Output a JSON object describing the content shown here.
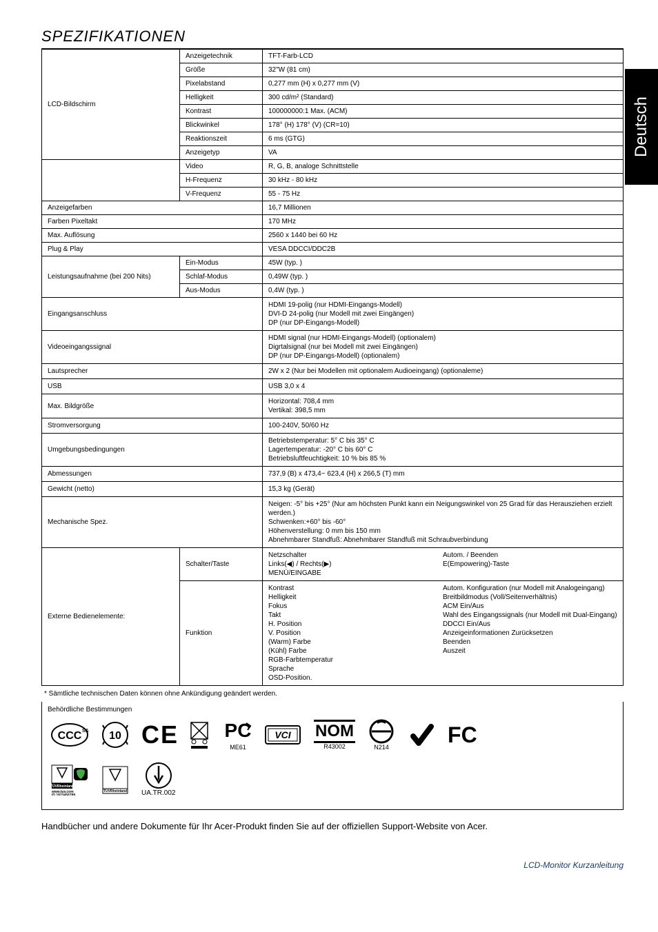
{
  "side_tab": "Deutsch",
  "title": "SPEZIFIKATIONEN",
  "rows": {
    "lcd_group_label": "LCD-Bildschirm",
    "lcd": [
      {
        "k": "Anzeigetechnik",
        "v": "TFT-Farb-LCD"
      },
      {
        "k": "Größe",
        "v": "32\"W (81 cm)"
      },
      {
        "k": "Pixelabstand",
        "v": "0,277 mm (H) x 0,277 mm (V)"
      },
      {
        "k": "Helligkeit",
        "v": "300 cd/m² (Standard)"
      },
      {
        "k": "Kontrast",
        "v": "100000000:1 Max. (ACM)"
      },
      {
        "k": "Blickwinkel",
        "v": "178° (H) 178° (V) (CR=10)"
      },
      {
        "k": "Reaktionszeit",
        "v": "6 ms (GTG)"
      },
      {
        "k": "Anzeigetyp",
        "v": "VA"
      }
    ],
    "freq_group_blank": "",
    "freq": [
      {
        "k": "Video",
        "v": "R, G, B, analoge Schnittstelle"
      },
      {
        "k": "H-Frequenz",
        "v": "30 kHz - 80 kHz"
      },
      {
        "k": "V-Frequenz",
        "v": "55 - 75 Hz"
      }
    ],
    "simple": [
      {
        "k": "Anzeigefarben",
        "v": "16,7 Millionen"
      },
      {
        "k": "Farben Pixeltakt",
        "v": "170 MHz"
      },
      {
        "k": "Max. Auflösung",
        "v": "2560 x 1440 bei 60 Hz"
      },
      {
        "k": "Plug & Play",
        "v": "VESA DDCCI/DDC2B"
      }
    ],
    "power_label": "Leistungsaufnahme (bei 200 Nits)",
    "power": [
      {
        "k": "Ein-Modus",
        "v": "45W (typ. )"
      },
      {
        "k": "Schlaf-Modus",
        "v": "0,49W (typ. )"
      },
      {
        "k": "Aus-Modus",
        "v": "0,4W (typ. )"
      }
    ],
    "wide": [
      {
        "k": "Eingangsanschluss",
        "v": "HDMI 19-polig (nur HDMI-Eingangs-Modell)\nDVI-D 24-polig (nur Modell mit zwei Eingängen)\nDP (nur DP-Eingangs-Modell)"
      },
      {
        "k": "Videoeingangssignal",
        "v": "HDMI signal (nur HDMI-Eingangs-Modell) (optionalem)\nDigrtalsignal (nur bei Modell mit zwei Eingängen)\nDP (nur DP-Eingangs-Modell) (optionalem)"
      },
      {
        "k": "Lautsprecher",
        "v": "2W x 2 (Nur bei Modellen mit optionalem Audioeingang) (optionaleme)"
      },
      {
        "k": "USB",
        "v": "USB 3,0 x 4"
      },
      {
        "k": "Max. Bildgröße",
        "v": "Horizontal: 708,4 mm\nVertikal: 398,5 mm"
      },
      {
        "k": "Stromversorgung",
        "v": "100-240V, 50/60 Hz"
      },
      {
        "k": "Umgebungsbedingungen",
        "v": "Betriebstemperatur: 5° C bis 35° C\nLagertemperatur: -20° C bis 60° C\nBetriebsluftfeuchtigkeit: 10 % bis 85 %"
      },
      {
        "k": "Abmessungen",
        "v": "737,9 (B) x 473,4~ 623,4 (H) x 266,5 (T) mm"
      },
      {
        "k": "Gewicht (netto)",
        "v": "15,3 kg (Gerät)"
      },
      {
        "k": "Mechanische Spez.",
        "v": "Neigen: -5° bis +25° (Nur am höchsten Punkt kann ein Neigungswinkel von 25 Grad für das Herausziehen erzielt werden.)\nSchwenken:+60° bis -60°\nHöhenverstellung: 0 mm bis 150 mm\nAbnehmbarer Standfuß: Abnehmbarer Standfuß mit Schraubverbindung"
      }
    ],
    "ext_label": "Externe Bedienelemente:",
    "ext_switch_k": "Schalter/Taste",
    "ext_switch_left": "Netzschalter\nLinks(◀) / Rechts(▶)\nMENÜ/EINGABE",
    "ext_switch_right": "Autom. / Beenden\nE(Empowering)-Taste",
    "ext_func_k": "Funktion",
    "ext_func_left": "Kontrast\nHelligkeit\nFokus\nTakt\nH. Position\nV. Position\n(Warm) Farbe\n(Kühl) Farbe\nRGB-Farbtemperatur\nSprache\nOSD-Position.",
    "ext_func_right": "Autom. Konfiguration (nur Modell mit Analogeingang)\nBreitbildmodus (Voll/Seitenverhältnis)\nACM Ein/Aus\nWahl des Eingangssignals (nur Modell mit Dual-Eingang)\nDDCCI Ein/Aus\nAnzeigeinformationen Zurücksetzen\nBeenden\nAuszeit"
  },
  "footnote": "* Sämtliche technischen Daten können ohne Ankündigung geändert werden.",
  "regulatory_label": "Behördliche Bestimmungen",
  "cert_sub": {
    "me": "ME61",
    "r": "R43002",
    "n": "N214",
    "ua": "UA.TR.002"
  },
  "bottom_note": "Handbücher und andere Dokumente für Ihr Acer-Produkt finden Sie auf der offiziellen Support-Website von Acer.",
  "footer": "LCD-Monitor Kurzanleitung"
}
